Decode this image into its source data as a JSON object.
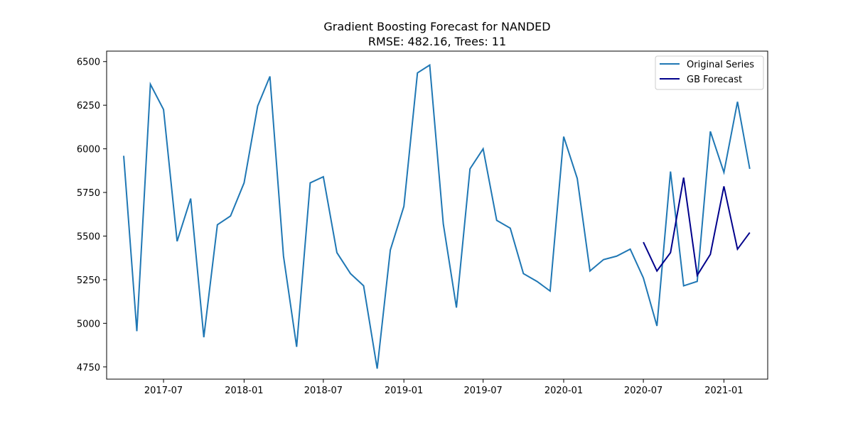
{
  "chart_data": {
    "type": "line",
    "title": "Gradient Boosting Forecast for NANDED",
    "subtitle": "RMSE: 482.16, Trees: 11",
    "xlabel": "",
    "ylabel": "",
    "ylim": [
      4680,
      6560
    ],
    "xlim": [
      "2017-02-21",
      "2021-04-11"
    ],
    "x_ticks": [
      "2017-07-01",
      "2018-01-01",
      "2018-07-01",
      "2019-01-01",
      "2019-07-01",
      "2020-01-01",
      "2020-07-01",
      "2021-01-01"
    ],
    "x_tick_labels": [
      "2017-07",
      "2018-01",
      "2018-07",
      "2019-01",
      "2019-07",
      "2020-01",
      "2020-07",
      "2021-01"
    ],
    "y_ticks": [
      4750,
      5000,
      5250,
      5500,
      5750,
      6000,
      6250,
      6500
    ],
    "y_tick_labels": [
      "4750",
      "5000",
      "5250",
      "5500",
      "5750",
      "6000",
      "6250",
      "6500"
    ],
    "grid": false,
    "legend_position": "top-right",
    "series": [
      {
        "name": "Original Series",
        "color": "#1f77b4",
        "x": [
          "2017-04-01",
          "2017-05-01",
          "2017-06-01",
          "2017-07-01",
          "2017-08-01",
          "2017-09-01",
          "2017-10-01",
          "2017-11-01",
          "2017-12-01",
          "2018-01-01",
          "2018-02-01",
          "2018-03-01",
          "2018-04-01",
          "2018-05-01",
          "2018-06-01",
          "2018-07-01",
          "2018-08-01",
          "2018-09-01",
          "2018-10-01",
          "2018-11-01",
          "2018-12-01",
          "2019-01-01",
          "2019-02-01",
          "2019-03-01",
          "2019-04-01",
          "2019-05-01",
          "2019-06-01",
          "2019-07-01",
          "2019-08-01",
          "2019-09-01",
          "2019-10-01",
          "2019-11-01",
          "2019-12-01",
          "2020-01-01",
          "2020-02-01",
          "2020-03-01",
          "2020-04-01",
          "2020-05-01",
          "2020-06-01",
          "2020-07-01",
          "2020-08-01",
          "2020-09-01",
          "2020-10-01",
          "2020-11-01",
          "2020-12-01",
          "2021-01-01",
          "2021-02-01",
          "2021-03-01"
        ],
        "values": [
          5960,
          4955,
          6370,
          6225,
          5470,
          5715,
          4920,
          5565,
          5615,
          5805,
          6245,
          6415,
          5385,
          4865,
          5805,
          5840,
          5405,
          5285,
          5215,
          4740,
          5420,
          5670,
          6435,
          6480,
          5570,
          5090,
          5885,
          6000,
          5590,
          5545,
          5285,
          5240,
          5185,
          6070,
          5830,
          5300,
          5365,
          5385,
          5425,
          5260,
          4985,
          5870,
          5215,
          5240,
          6100,
          5865,
          6270,
          5885
        ]
      },
      {
        "name": "GB Forecast",
        "color": "#00008b",
        "x": [
          "2020-07-01",
          "2020-08-01",
          "2020-09-01",
          "2020-10-01",
          "2020-11-01",
          "2020-12-01",
          "2021-01-01",
          "2021-02-01",
          "2021-03-01"
        ],
        "values": [
          5465,
          5300,
          5405,
          5835,
          5275,
          5395,
          5785,
          5425,
          5520
        ]
      }
    ]
  }
}
